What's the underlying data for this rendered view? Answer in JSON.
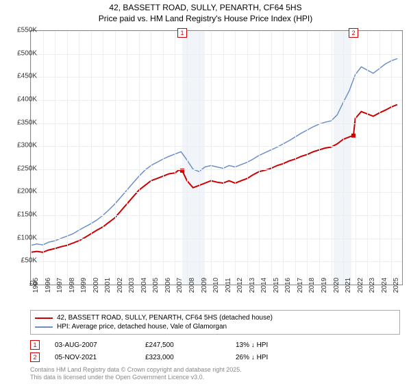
{
  "title_line1": "42, BASSETT ROAD, SULLY, PENARTH, CF64 5HS",
  "title_line2": "Price paid vs. HM Land Registry's House Price Index (HPI)",
  "chart": {
    "type": "line",
    "xlim": [
      1995,
      2025.9
    ],
    "ylim": [
      0,
      550
    ],
    "ytick_step": 50,
    "ytick_labels": [
      "£0",
      "£50K",
      "£100K",
      "£150K",
      "£200K",
      "£250K",
      "£300K",
      "£350K",
      "£400K",
      "£450K",
      "£500K",
      "£550K"
    ],
    "xticks": [
      1995,
      1996,
      1997,
      1998,
      1999,
      2000,
      2001,
      2002,
      2003,
      2004,
      2005,
      2006,
      2007,
      2008,
      2009,
      2010,
      2011,
      2012,
      2013,
      2014,
      2015,
      2016,
      2017,
      2018,
      2019,
      2020,
      2021,
      2022,
      2023,
      2024,
      2025
    ],
    "background_color": "#ffffff",
    "grid_color": "#eeeeee",
    "shaded_x": [
      [
        2007.6,
        2009.5
      ],
      [
        2020.2,
        2021.7
      ]
    ],
    "shade_color": "#e8eef5",
    "series": [
      {
        "name": "price_paid",
        "color": "#cc0000",
        "width": 2,
        "points": [
          [
            1995,
            70
          ],
          [
            1995.5,
            72
          ],
          [
            1996,
            70
          ],
          [
            1996.5,
            75
          ],
          [
            1997,
            78
          ],
          [
            1997.5,
            82
          ],
          [
            1998,
            85
          ],
          [
            1998.5,
            90
          ],
          [
            1999,
            95
          ],
          [
            1999.5,
            102
          ],
          [
            2000,
            110
          ],
          [
            2000.5,
            118
          ],
          [
            2001,
            125
          ],
          [
            2001.5,
            135
          ],
          [
            2002,
            145
          ],
          [
            2002.5,
            160
          ],
          [
            2003,
            175
          ],
          [
            2003.5,
            190
          ],
          [
            2004,
            205
          ],
          [
            2004.5,
            215
          ],
          [
            2005,
            225
          ],
          [
            2005.5,
            230
          ],
          [
            2006,
            235
          ],
          [
            2006.5,
            240
          ],
          [
            2007,
            242
          ],
          [
            2007.3,
            248
          ],
          [
            2007.6,
            247
          ],
          [
            2008,
            225
          ],
          [
            2008.5,
            210
          ],
          [
            2009,
            215
          ],
          [
            2009.5,
            220
          ],
          [
            2010,
            225
          ],
          [
            2010.5,
            222
          ],
          [
            2011,
            220
          ],
          [
            2011.5,
            225
          ],
          [
            2012,
            220
          ],
          [
            2012.5,
            225
          ],
          [
            2013,
            230
          ],
          [
            2013.5,
            238
          ],
          [
            2014,
            245
          ],
          [
            2014.5,
            248
          ],
          [
            2015,
            252
          ],
          [
            2015.5,
            258
          ],
          [
            2016,
            262
          ],
          [
            2016.5,
            268
          ],
          [
            2017,
            272
          ],
          [
            2017.5,
            278
          ],
          [
            2018,
            282
          ],
          [
            2018.5,
            288
          ],
          [
            2019,
            292
          ],
          [
            2019.5,
            296
          ],
          [
            2020,
            298
          ],
          [
            2020.5,
            305
          ],
          [
            2021,
            315
          ],
          [
            2021.5,
            320
          ],
          [
            2021.85,
            323
          ],
          [
            2022,
            360
          ],
          [
            2022.5,
            375
          ],
          [
            2023,
            370
          ],
          [
            2023.5,
            365
          ],
          [
            2024,
            372
          ],
          [
            2024.5,
            378
          ],
          [
            2025,
            385
          ],
          [
            2025.5,
            390
          ]
        ],
        "marker_points": [
          [
            2007.6,
            247,
            "1"
          ],
          [
            2021.85,
            323,
            "2"
          ]
        ],
        "marker_style": "square"
      },
      {
        "name": "hpi",
        "color": "#6b8fc9",
        "width": 1.5,
        "points": [
          [
            1995,
            85
          ],
          [
            1995.5,
            88
          ],
          [
            1996,
            86
          ],
          [
            1996.5,
            92
          ],
          [
            1997,
            95
          ],
          [
            1997.5,
            100
          ],
          [
            1998,
            105
          ],
          [
            1998.5,
            110
          ],
          [
            1999,
            118
          ],
          [
            1999.5,
            125
          ],
          [
            2000,
            132
          ],
          [
            2000.5,
            140
          ],
          [
            2001,
            150
          ],
          [
            2001.5,
            162
          ],
          [
            2002,
            175
          ],
          [
            2002.5,
            190
          ],
          [
            2003,
            205
          ],
          [
            2003.5,
            220
          ],
          [
            2004,
            235
          ],
          [
            2004.5,
            248
          ],
          [
            2005,
            258
          ],
          [
            2005.5,
            265
          ],
          [
            2006,
            272
          ],
          [
            2006.5,
            278
          ],
          [
            2007,
            283
          ],
          [
            2007.5,
            288
          ],
          [
            2008,
            270
          ],
          [
            2008.5,
            250
          ],
          [
            2009,
            245
          ],
          [
            2009.5,
            255
          ],
          [
            2010,
            258
          ],
          [
            2010.5,
            255
          ],
          [
            2011,
            252
          ],
          [
            2011.5,
            258
          ],
          [
            2012,
            255
          ],
          [
            2012.5,
            260
          ],
          [
            2013,
            265
          ],
          [
            2013.5,
            272
          ],
          [
            2014,
            280
          ],
          [
            2014.5,
            286
          ],
          [
            2015,
            292
          ],
          [
            2015.5,
            298
          ],
          [
            2016,
            305
          ],
          [
            2016.5,
            312
          ],
          [
            2017,
            320
          ],
          [
            2017.5,
            328
          ],
          [
            2018,
            335
          ],
          [
            2018.5,
            342
          ],
          [
            2019,
            348
          ],
          [
            2019.5,
            352
          ],
          [
            2020,
            355
          ],
          [
            2020.5,
            368
          ],
          [
            2021,
            395
          ],
          [
            2021.5,
            420
          ],
          [
            2022,
            455
          ],
          [
            2022.5,
            472
          ],
          [
            2023,
            465
          ],
          [
            2023.5,
            458
          ],
          [
            2024,
            468
          ],
          [
            2024.5,
            478
          ],
          [
            2025,
            485
          ],
          [
            2025.5,
            490
          ]
        ]
      }
    ],
    "annotation_markers": [
      {
        "num": "1",
        "x": 2007.6,
        "y_offset": -12
      },
      {
        "num": "2",
        "x": 2021.85,
        "y_offset": -12
      }
    ]
  },
  "legend": {
    "items": [
      {
        "color": "#cc0000",
        "label": "42, BASSETT ROAD, SULLY, PENARTH, CF64 5HS (detached house)"
      },
      {
        "color": "#6b8fc9",
        "label": "HPI: Average price, detached house, Vale of Glamorgan"
      }
    ]
  },
  "notes": [
    {
      "num": "1",
      "date": "03-AUG-2007",
      "price": "£247,500",
      "delta": "13% ↓ HPI"
    },
    {
      "num": "2",
      "date": "05-NOV-2021",
      "price": "£323,000",
      "delta": "26% ↓ HPI"
    }
  ],
  "footer_line1": "Contains HM Land Registry data © Crown copyright and database right 2025.",
  "footer_line2": "This data is licensed under the Open Government Licence v3.0."
}
